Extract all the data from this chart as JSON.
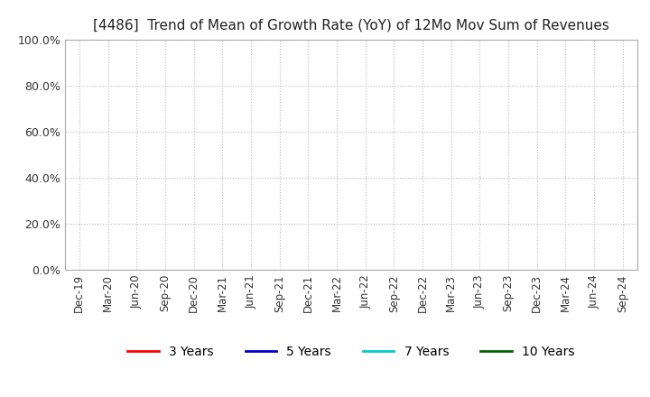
{
  "title": "[4486]  Trend of Mean of Growth Rate (YoY) of 12Mo Mov Sum of Revenues",
  "title_fontsize": 11,
  "yticks": [
    0.0,
    0.2,
    0.4,
    0.6,
    0.8,
    1.0
  ],
  "ylim": [
    0.0,
    1.0
  ],
  "xtick_labels": [
    "Dec-19",
    "Mar-20",
    "Jun-20",
    "Sep-20",
    "Dec-20",
    "Mar-21",
    "Jun-21",
    "Sep-21",
    "Dec-21",
    "Mar-22",
    "Jun-22",
    "Sep-22",
    "Dec-22",
    "Mar-23",
    "Jun-23",
    "Sep-23",
    "Dec-23",
    "Mar-24",
    "Jun-24",
    "Sep-24"
  ],
  "background_color": "#ffffff",
  "plot_bg_color": "#ffffff",
  "grid_color": "#bbbbbb",
  "legend_entries": [
    "3 Years",
    "5 Years",
    "7 Years",
    "10 Years"
  ],
  "legend_colors": [
    "#ff0000",
    "#0000cd",
    "#00cccc",
    "#006400"
  ]
}
